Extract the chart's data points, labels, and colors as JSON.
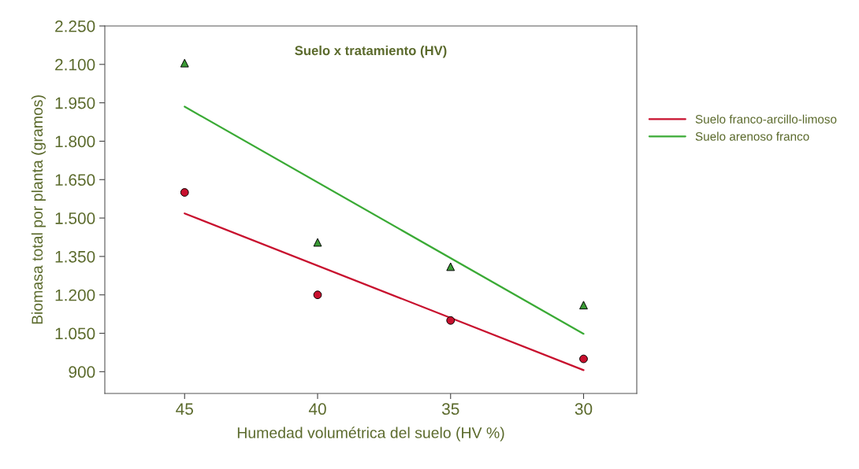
{
  "chart_data": {
    "type": "scatter",
    "title": "Suelo x tratamiento (HV)",
    "xlabel": "Humedad volumétrica del suelo (HV %)",
    "ylabel": "Biomasa total por planta (gramos)",
    "xlim": [
      48,
      28
    ],
    "xticks": [
      45,
      40,
      35,
      30
    ],
    "ylim": [
      815,
      2250
    ],
    "yticks": [
      {
        "value": 900,
        "label": "900"
      },
      {
        "value": 1050,
        "label": "1.050"
      },
      {
        "value": 1200,
        "label": "1.200"
      },
      {
        "value": 1350,
        "label": "1.350"
      },
      {
        "value": 1500,
        "label": "1.500"
      },
      {
        "value": 1650,
        "label": "1.650"
      },
      {
        "value": 1800,
        "label": "1.800"
      },
      {
        "value": 1950,
        "label": "1.950"
      },
      {
        "value": 2100,
        "label": "2.100"
      },
      {
        "value": 2250,
        "label": "2.250"
      }
    ],
    "grid": false,
    "legend": "right",
    "series": [
      {
        "color": "#c8102e",
        "marker": "circle",
        "x": [
          45,
          40,
          35,
          30
        ],
        "values": [
          1600,
          1200,
          1100,
          950
        ]
      },
      {
        "color": "#3a9a35",
        "marker": "triangle",
        "x": [
          45,
          40,
          35,
          30
        ],
        "values": [
          2105,
          1405,
          1310,
          1160
        ]
      },
      {
        "type": "line",
        "name": "Suelo franco-arcillo-limoso",
        "color": "#c8102e",
        "marker": "none",
        "x": [
          45,
          30
        ],
        "values": [
          1518,
          906
        ]
      },
      {
        "type": "line",
        "name": "Suelo arenoso franco",
        "color": "#3aaa35",
        "marker": "none",
        "x": [
          45,
          30
        ],
        "values": [
          1935,
          1048
        ]
      }
    ]
  }
}
